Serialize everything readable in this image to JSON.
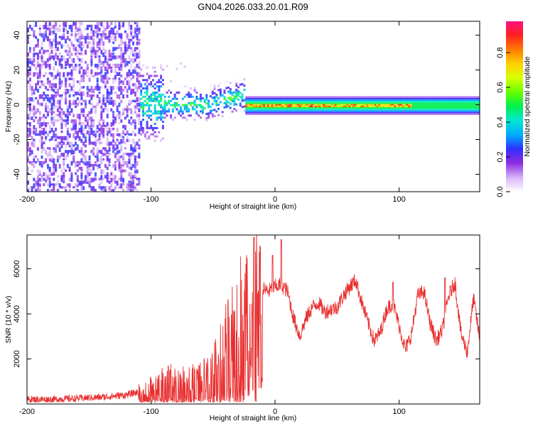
{
  "title": "GN04.2026.033.20.01.R09",
  "chart_data": [
    {
      "type": "heatmap",
      "name": "spectrogram",
      "xlabel": "Height of straight line (km)",
      "ylabel": "Frequency (Hz)",
      "xlim": [
        -200,
        165
      ],
      "ylim": [
        -50,
        48
      ],
      "xticks": [
        -200,
        -100,
        0,
        100
      ],
      "yticks": [
        -40,
        -20,
        0,
        20,
        40
      ],
      "colorbar": {
        "label": "Normalized spectral amplitude",
        "range": [
          0.0,
          0.98
        ],
        "ticks": [
          0.0,
          0.2,
          0.4,
          0.6,
          0.8
        ]
      },
      "regions": [
        {
          "label": "noise",
          "x": [
            -200,
            -110
          ],
          "freq_spread": [
            -50,
            48
          ],
          "amplitude": [
            0.05,
            0.25
          ]
        },
        {
          "label": "transition",
          "x": [
            -150,
            -25
          ],
          "freq_spread": [
            -8,
            10
          ],
          "amplitude": [
            0.1,
            0.5
          ]
        },
        {
          "label": "tone",
          "x": [
            -25,
            165
          ],
          "freq_center": 0,
          "amplitude": [
            0.5,
            0.95
          ]
        }
      ]
    },
    {
      "type": "line",
      "name": "snr",
      "xlabel": "Height of straight line (km)",
      "ylabel": "SNR (10 * v/v)",
      "xlim": [
        -200,
        165
      ],
      "ylim": [
        0,
        7500
      ],
      "xticks": [
        -200,
        -100,
        0,
        100
      ],
      "yticks": [
        2000,
        4000,
        6000
      ],
      "series": [
        {
          "name": "SNR",
          "color": "#e83030",
          "x": [
            -200,
            -180,
            -160,
            -140,
            -120,
            -105,
            -95,
            -85,
            -75,
            -65,
            -55,
            -45,
            -40,
            -35,
            -30,
            -25,
            -20,
            -15,
            -10,
            -5,
            0,
            5,
            10,
            15,
            20,
            25,
            30,
            35,
            40,
            45,
            50,
            55,
            60,
            65,
            70,
            75,
            80,
            85,
            90,
            95,
            100,
            105,
            110,
            115,
            120,
            125,
            130,
            135,
            140,
            145,
            150,
            155,
            160,
            165
          ],
          "values": [
            200,
            200,
            250,
            300,
            400,
            600,
            900,
            1100,
            1000,
            1100,
            1300,
            1800,
            2500,
            3200,
            3600,
            4100,
            4500,
            5000,
            5100,
            5000,
            5200,
            5300,
            5000,
            3800,
            3000,
            3800,
            4300,
            4500,
            4100,
            4200,
            4300,
            4800,
            5200,
            5500,
            4500,
            3600,
            2800,
            3200,
            4200,
            4500,
            3500,
            2400,
            3100,
            4800,
            5000,
            3600,
            2800,
            3300,
            4800,
            5400,
            3100,
            2300,
            4700,
            2900
          ],
          "peaks": [
            [
              -17,
              7400
            ],
            [
              -12,
              7000
            ],
            [
              5,
              7300
            ],
            [
              -2,
              6600
            ],
            [
              95,
              5400
            ],
            [
              137,
              5600
            ]
          ]
        }
      ]
    }
  ]
}
